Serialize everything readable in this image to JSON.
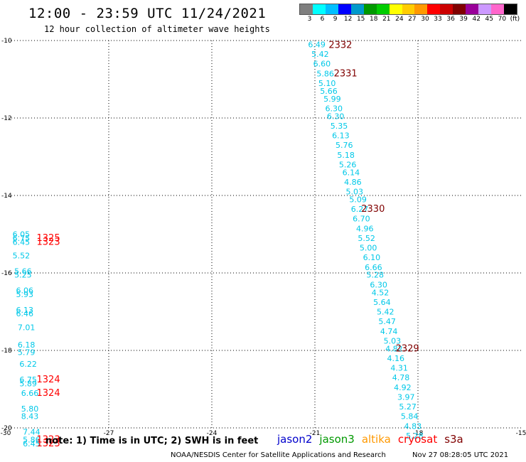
{
  "header": {
    "title": "12:00 - 23:59 UTC 11/24/2021",
    "subtitle": "12 hour collection of altimeter wave heights"
  },
  "colorbar": {
    "colors": [
      "#7f7f7f",
      "#00ffff",
      "#00bfff",
      "#0000ff",
      "#0099cc",
      "#009900",
      "#00cc00",
      "#ffff00",
      "#ffcc00",
      "#ff9900",
      "#ff0000",
      "#cc0000",
      "#800000",
      "#990099",
      "#cc99ff",
      "#ff66cc",
      "#000000"
    ],
    "labels": [
      "3",
      "6",
      "9",
      "12",
      "15",
      "18",
      "21",
      "24",
      "27",
      "30",
      "33",
      "36",
      "39",
      "42",
      "45",
      "70",
      "(ft)"
    ]
  },
  "note": "note: 1) Time is in UTC; 2) SWH is in feet",
  "legend": [
    {
      "name": "jason2",
      "color": "#0000cc"
    },
    {
      "name": "jason3",
      "color": "#009900"
    },
    {
      "name": "altika",
      "color": "#ff9900"
    },
    {
      "name": "cryosat",
      "color": "#ff0000"
    },
    {
      "name": "s3a",
      "color": "#800000"
    }
  ],
  "footer": {
    "credit": "NOAA/NESDIS Center for Satellite Applications and Research",
    "timestamp": "Nov 27 08:28:05 UTC 2021"
  },
  "chart_data": {
    "type": "scatter",
    "xlim": [
      -30,
      -15
    ],
    "ylim": [
      -20,
      -10
    ],
    "xticks": [
      -30,
      -27,
      -24,
      -21,
      -18,
      -15
    ],
    "yticks": [
      -10,
      -12,
      -14,
      -16,
      -18,
      -20
    ],
    "x_tick_labels": [
      "-30",
      "-27",
      "-24",
      "-21",
      "-18",
      "-15"
    ],
    "y_tick_labels": [
      "-10",
      "-12",
      "-14",
      "-16",
      "-18",
      "-20"
    ],
    "grid": true,
    "point_color": "#00c8e8",
    "track_east": [
      {
        "x": -21.2,
        "y": -10.1,
        "label": "6.49"
      },
      {
        "x": -21.1,
        "y": -10.35,
        "label": "5.42"
      },
      {
        "x": -21.05,
        "y": -10.6,
        "label": "6.60"
      },
      {
        "x": -20.95,
        "y": -10.85,
        "label": "5.86"
      },
      {
        "x": -20.9,
        "y": -11.1,
        "label": "5.10"
      },
      {
        "x": -20.85,
        "y": -11.3,
        "label": "5.66"
      },
      {
        "x": -20.75,
        "y": -11.5,
        "label": "5.99"
      },
      {
        "x": -20.7,
        "y": -11.75,
        "label": "6.30"
      },
      {
        "x": -20.65,
        "y": -11.95,
        "label": "6.30"
      },
      {
        "x": -20.55,
        "y": -12.2,
        "label": "5.35"
      },
      {
        "x": -20.5,
        "y": -12.45,
        "label": "6.13"
      },
      {
        "x": -20.4,
        "y": -12.7,
        "label": "5.76"
      },
      {
        "x": -20.35,
        "y": -12.95,
        "label": "5.18"
      },
      {
        "x": -20.3,
        "y": -13.2,
        "label": "5.26"
      },
      {
        "x": -20.2,
        "y": -13.4,
        "label": "6.14"
      },
      {
        "x": -20.15,
        "y": -13.65,
        "label": "4.86"
      },
      {
        "x": -20.1,
        "y": -13.9,
        "label": "5.03"
      },
      {
        "x": -20.0,
        "y": -14.1,
        "label": "5.09"
      },
      {
        "x": -19.95,
        "y": -14.35,
        "label": "6.27"
      },
      {
        "x": -19.9,
        "y": -14.6,
        "label": "6.70"
      },
      {
        "x": -19.8,
        "y": -14.85,
        "label": "4.96"
      },
      {
        "x": -19.75,
        "y": -15.1,
        "label": "5.52"
      },
      {
        "x": -19.7,
        "y": -15.35,
        "label": "5.00"
      },
      {
        "x": -19.6,
        "y": -15.6,
        "label": "6.10"
      },
      {
        "x": -19.55,
        "y": -15.85,
        "label": "6.66"
      },
      {
        "x": -19.5,
        "y": -16.05,
        "label": "5.28"
      },
      {
        "x": -19.4,
        "y": -16.3,
        "label": "6.30"
      },
      {
        "x": -19.35,
        "y": -16.5,
        "label": "4.52"
      },
      {
        "x": -19.3,
        "y": -16.75,
        "label": "5.64"
      },
      {
        "x": -19.2,
        "y": -17.0,
        "label": "5.42"
      },
      {
        "x": -19.15,
        "y": -17.25,
        "label": "5.47"
      },
      {
        "x": -19.1,
        "y": -17.5,
        "label": "4.74"
      },
      {
        "x": -19.0,
        "y": -17.75,
        "label": "5.03"
      },
      {
        "x": -18.95,
        "y": -17.95,
        "label": "4.82"
      },
      {
        "x": -18.9,
        "y": -18.2,
        "label": "4.16"
      },
      {
        "x": -18.8,
        "y": -18.45,
        "label": "4.31"
      },
      {
        "x": -18.75,
        "y": -18.7,
        "label": "4.78"
      },
      {
        "x": -18.7,
        "y": -18.95,
        "label": "4.92"
      },
      {
        "x": -18.6,
        "y": -19.2,
        "label": "3.97"
      },
      {
        "x": -18.55,
        "y": -19.45,
        "label": "5.27"
      },
      {
        "x": -18.5,
        "y": -19.7,
        "label": "5.84"
      },
      {
        "x": -18.4,
        "y": -19.95,
        "label": "4.83"
      },
      {
        "x": -18.35,
        "y": -20.2,
        "label": "5.28"
      }
    ],
    "track_west": [
      {
        "x": -29.8,
        "y": -15.0,
        "label": "6.05"
      },
      {
        "x": -29.8,
        "y": -15.1,
        "label": "6.75"
      },
      {
        "x": -29.8,
        "y": -15.2,
        "label": "6.45"
      },
      {
        "x": -29.8,
        "y": -15.55,
        "label": "5.52"
      },
      {
        "x": -29.75,
        "y": -15.95,
        "label": "5.66"
      },
      {
        "x": -29.75,
        "y": -16.05,
        "label": "5.25"
      },
      {
        "x": -29.7,
        "y": -16.45,
        "label": "6.06"
      },
      {
        "x": -29.7,
        "y": -16.55,
        "label": "5.93"
      },
      {
        "x": -29.7,
        "y": -16.95,
        "label": "6.13"
      },
      {
        "x": -29.7,
        "y": -17.05,
        "label": "6.46"
      },
      {
        "x": -29.65,
        "y": -17.4,
        "label": "7.01"
      },
      {
        "x": -29.65,
        "y": -17.85,
        "label": "6.18"
      },
      {
        "x": -29.65,
        "y": -18.05,
        "label": "5.79"
      },
      {
        "x": -29.6,
        "y": -18.35,
        "label": "6.22"
      },
      {
        "x": -29.6,
        "y": -18.75,
        "label": "6.75"
      },
      {
        "x": -29.6,
        "y": -18.85,
        "label": "5.89"
      },
      {
        "x": -29.55,
        "y": -19.1,
        "label": "6.66"
      },
      {
        "x": -29.55,
        "y": -19.5,
        "label": "5.80"
      },
      {
        "x": -29.55,
        "y": -19.7,
        "label": "8.43"
      },
      {
        "x": -29.5,
        "y": -20.1,
        "label": "7.44"
      },
      {
        "x": -29.5,
        "y": -20.3,
        "label": "5.86"
      },
      {
        "x": -29.5,
        "y": -20.4,
        "label": "6.45"
      }
    ],
    "pass_labels": [
      {
        "x": -20.6,
        "y": -10.12,
        "label": "2332",
        "color": "#800000"
      },
      {
        "x": -20.45,
        "y": -10.85,
        "label": "2331",
        "color": "#800000"
      },
      {
        "x": -19.65,
        "y": -14.35,
        "label": "2330",
        "color": "#800000"
      },
      {
        "x": -18.65,
        "y": -17.95,
        "label": "2329",
        "color": "#800000"
      },
      {
        "x": -29.1,
        "y": -15.1,
        "label": "1325",
        "color": "#ff0000"
      },
      {
        "x": -29.1,
        "y": -15.2,
        "label": "1323",
        "color": "#ff0000"
      },
      {
        "x": -29.1,
        "y": -18.75,
        "label": "1324",
        "color": "#ff0000"
      },
      {
        "x": -29.1,
        "y": -19.1,
        "label": "1324",
        "color": "#ff0000"
      },
      {
        "x": -29.1,
        "y": -20.3,
        "label": "1323",
        "color": "#ff0000"
      },
      {
        "x": -29.1,
        "y": -20.4,
        "label": "1323",
        "color": "#ff0000"
      }
    ]
  }
}
